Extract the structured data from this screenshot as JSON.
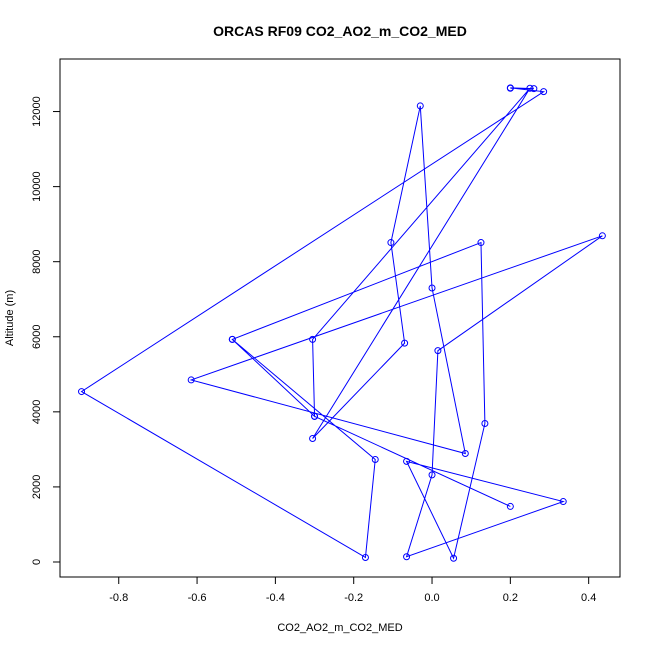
{
  "chart_data": {
    "type": "line",
    "title": "ORCAS RF09 CO2_AO2_m_CO2_MED",
    "xlabel": "CO2_AO2_m_CO2_MED",
    "ylabel": "Altitude (m)",
    "xlim": [
      -0.95,
      0.48
    ],
    "ylim": [
      -400,
      13400
    ],
    "x_ticks": [
      -0.8,
      -0.6,
      -0.4,
      -0.2,
      0.0,
      0.2,
      0.4
    ],
    "x_tick_labels": [
      "-0.8",
      "-0.6",
      "-0.4",
      "-0.2",
      "0.0",
      "0.2",
      "0.4"
    ],
    "y_ticks": [
      0,
      2000,
      4000,
      6000,
      8000,
      10000,
      12000
    ],
    "y_tick_labels": [
      "0",
      "2000",
      "4000",
      "6000",
      "8000",
      "10000",
      "12000"
    ],
    "grid": false,
    "series": [
      {
        "color": "#0000ff",
        "marker": "open-circle",
        "points": [
          {
            "x": 0.2,
            "y": 12620
          },
          {
            "x": 0.26,
            "y": 12610
          },
          {
            "x": 0.2,
            "y": 12630
          },
          {
            "x": 0.285,
            "y": 12530
          },
          {
            "x": -0.895,
            "y": 4540
          },
          {
            "x": -0.17,
            "y": 120
          },
          {
            "x": -0.145,
            "y": 2730
          },
          {
            "x": -0.51,
            "y": 5930
          },
          {
            "x": -0.3,
            "y": 3880
          },
          {
            "x": -0.305,
            "y": 5930
          },
          {
            "x": 0.25,
            "y": 12620
          },
          {
            "x": -0.305,
            "y": 3290
          },
          {
            "x": -0.07,
            "y": 5830
          },
          {
            "x": -0.105,
            "y": 8510
          },
          {
            "x": -0.03,
            "y": 12150
          },
          {
            "x": 0.0,
            "y": 7300
          },
          {
            "x": 0.085,
            "y": 2890
          },
          {
            "x": -0.615,
            "y": 4850
          },
          {
            "x": 0.435,
            "y": 8690
          },
          {
            "x": 0.015,
            "y": 5630
          },
          {
            "x": 0.0,
            "y": 2320
          },
          {
            "x": -0.065,
            "y": 140
          },
          {
            "x": 0.335,
            "y": 1610
          },
          {
            "x": -0.065,
            "y": 2680
          },
          {
            "x": 0.055,
            "y": 100
          },
          {
            "x": 0.135,
            "y": 3690
          },
          {
            "x": 0.125,
            "y": 8510
          },
          {
            "x": -0.51,
            "y": 5930
          },
          {
            "x": -0.3,
            "y": 3880
          },
          {
            "x": 0.2,
            "y": 1480
          }
        ]
      }
    ]
  }
}
